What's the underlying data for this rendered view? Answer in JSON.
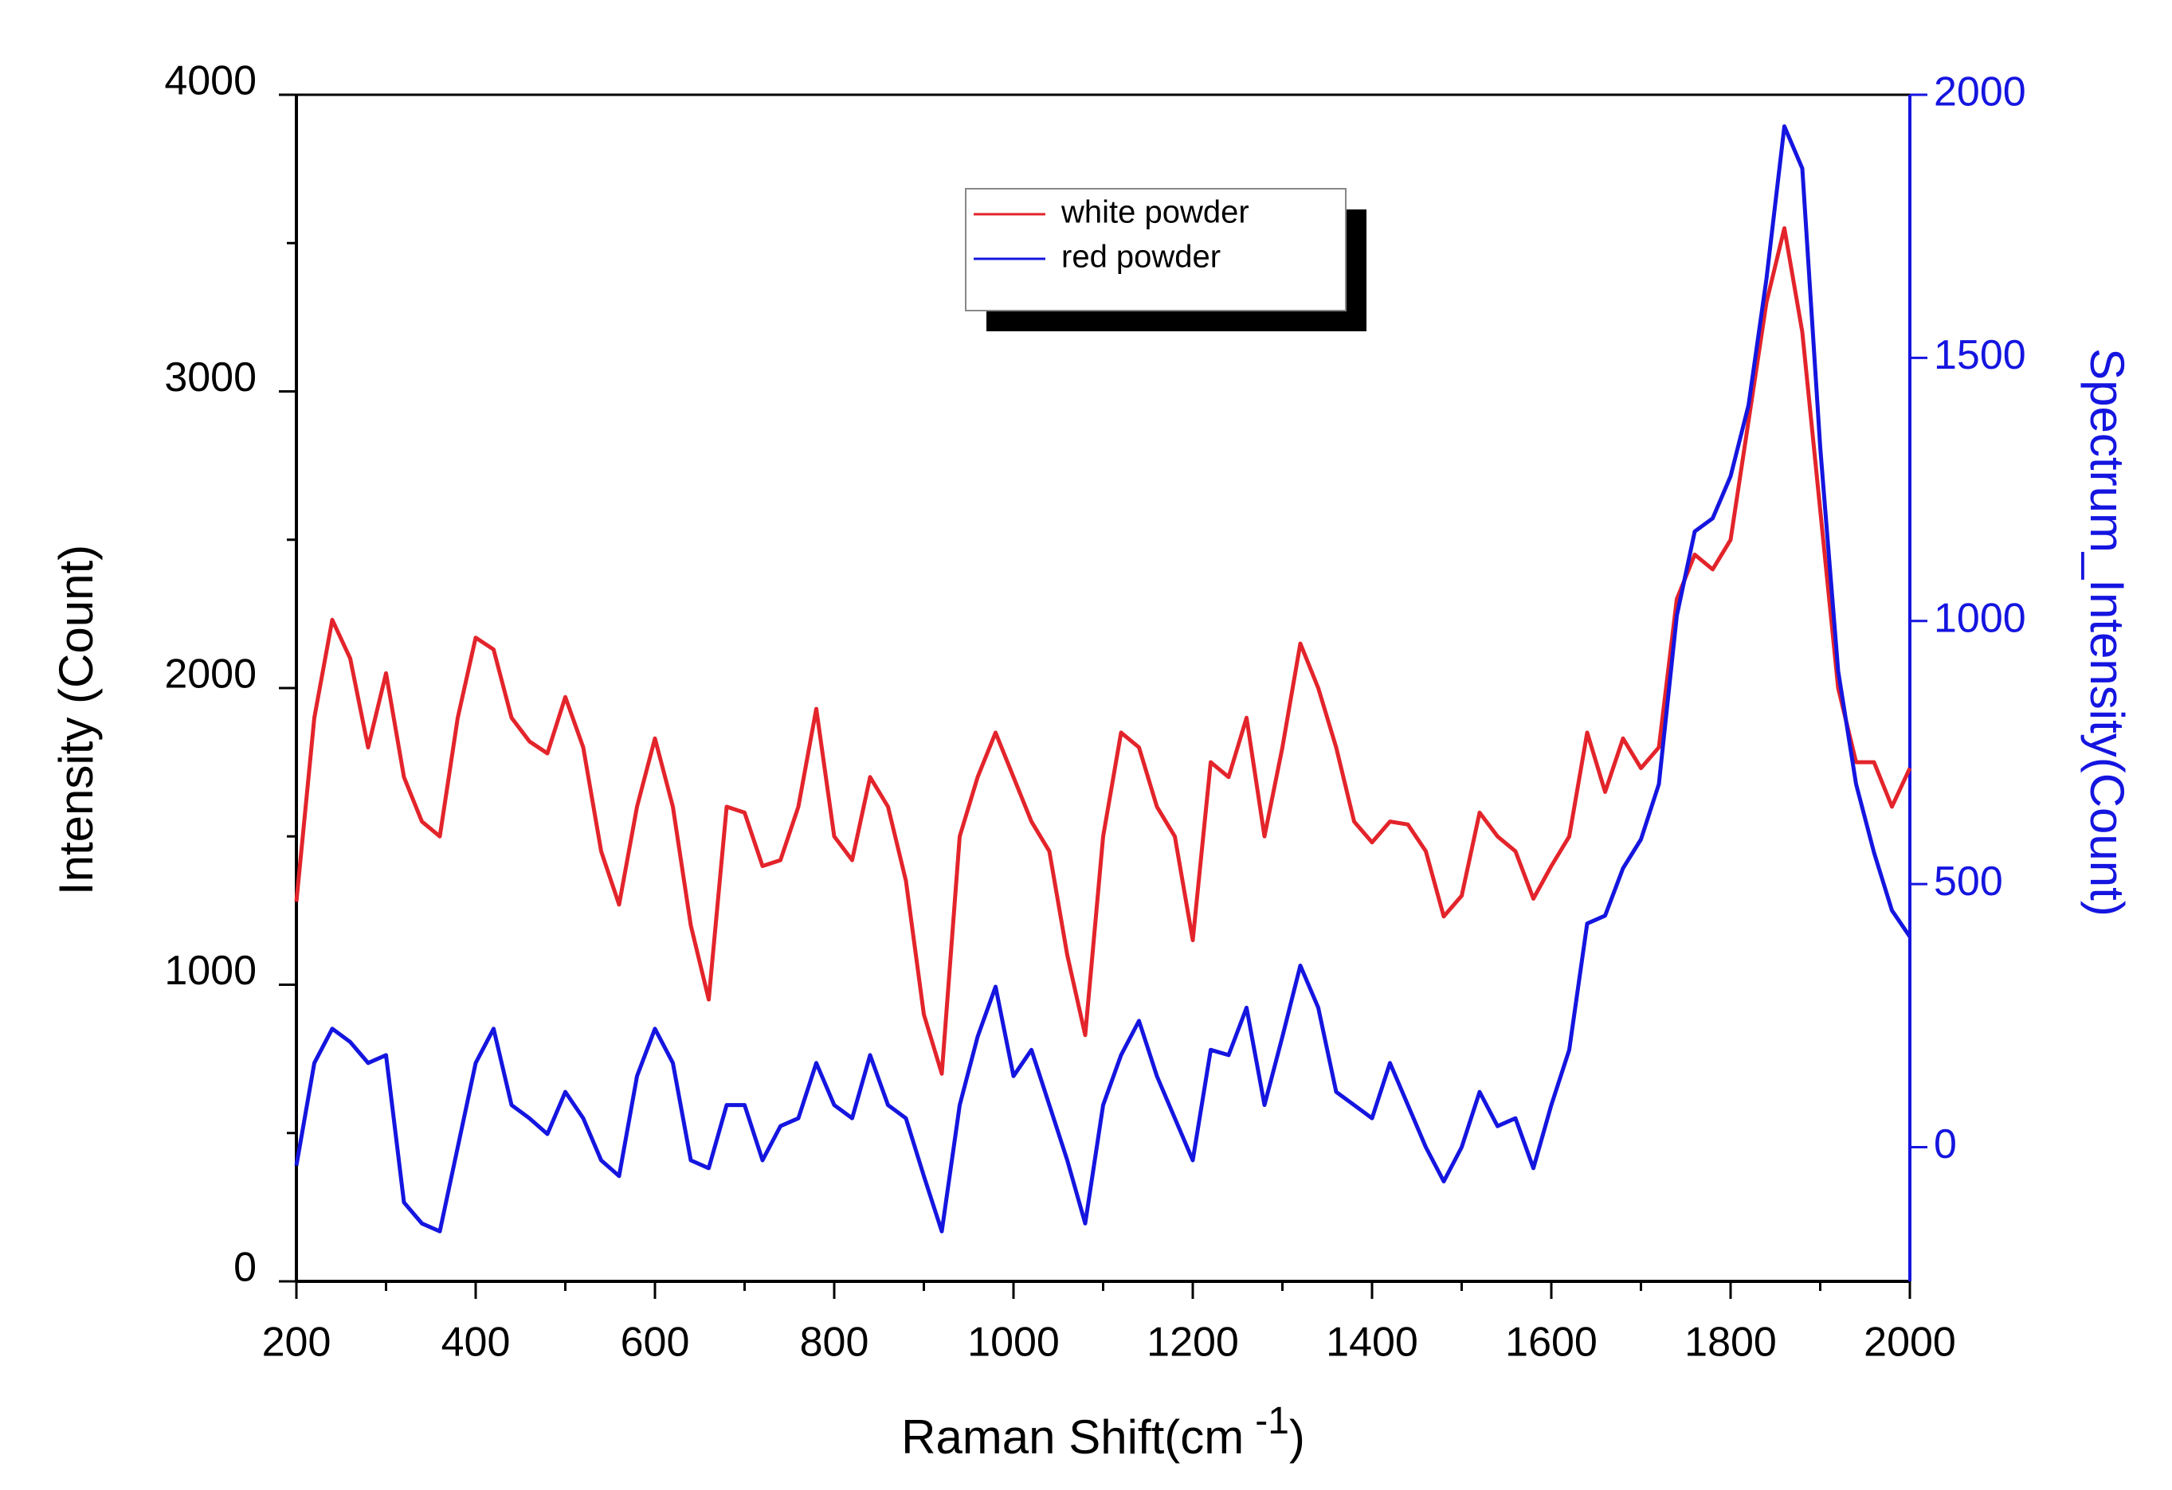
{
  "chart_data": {
    "type": "line",
    "x_label": {
      "text": "Raman Shift(cm",
      "superscript": "-1",
      "suffix": ")"
    },
    "y_label": "Intensity (Count)",
    "y2_label": "Spectrum_Intensity(Count)",
    "x": [
      200,
      220,
      240,
      260,
      280,
      300,
      320,
      340,
      360,
      380,
      400,
      420,
      440,
      460,
      480,
      500,
      520,
      540,
      560,
      580,
      600,
      620,
      640,
      660,
      680,
      700,
      720,
      740,
      760,
      780,
      800,
      820,
      840,
      860,
      880,
      900,
      920,
      940,
      960,
      980,
      1000,
      1020,
      1040,
      1060,
      1080,
      1100,
      1120,
      1140,
      1160,
      1180,
      1200,
      1220,
      1240,
      1260,
      1280,
      1300,
      1320,
      1340,
      1360,
      1380,
      1400,
      1420,
      1440,
      1460,
      1480,
      1500,
      1520,
      1540,
      1560,
      1580,
      1600,
      1620,
      1640,
      1660,
      1680,
      1700,
      1720,
      1740,
      1760,
      1780,
      1800,
      1820,
      1840,
      1860,
      1880,
      1900,
      1920,
      1940,
      1960,
      1980,
      2000
    ],
    "series": [
      {
        "name": "white powder",
        "color": "#e3242b",
        "axis": "y",
        "values": [
          1280,
          1900,
          2230,
          2100,
          1800,
          2050,
          1700,
          1550,
          1500,
          1900,
          2170,
          2130,
          1900,
          1820,
          1780,
          1970,
          1800,
          1450,
          1270,
          1600,
          1830,
          1600,
          1200,
          950,
          1600,
          1580,
          1400,
          1420,
          1600,
          1930,
          1500,
          1420,
          1700,
          1600,
          1350,
          900,
          700,
          1500,
          1700,
          1850,
          1700,
          1550,
          1450,
          1100,
          830,
          1500,
          1850,
          1800,
          1600,
          1500,
          1150,
          1750,
          1700,
          1900,
          1500,
          1800,
          2150,
          2000,
          1800,
          1550,
          1480,
          1550,
          1540,
          1450,
          1230,
          1300,
          1580,
          1500,
          1450,
          1290,
          1400,
          1500,
          1850,
          1650,
          1830,
          1730,
          1800,
          2300,
          2450,
          2400,
          2500,
          2900,
          3300,
          3550,
          3200,
          2600,
          2000,
          1750,
          1750,
          1600,
          1730
        ]
      },
      {
        "name": "red powder",
        "color": "#1515e0",
        "axis": "y2",
        "values": [
          -35,
          160,
          225,
          200,
          160,
          175,
          -105,
          -145,
          -160,
          0,
          160,
          225,
          80,
          55,
          25,
          105,
          55,
          -25,
          -55,
          135,
          225,
          160,
          -25,
          -40,
          80,
          80,
          -25,
          40,
          55,
          160,
          80,
          55,
          175,
          80,
          55,
          -55,
          -160,
          80,
          210,
          305,
          135,
          185,
          80,
          -25,
          -145,
          80,
          175,
          240,
          135,
          55,
          -25,
          185,
          175,
          265,
          80,
          210,
          345,
          265,
          105,
          80,
          55,
          160,
          80,
          0,
          -65,
          0,
          105,
          40,
          55,
          -40,
          80,
          185,
          425,
          440,
          530,
          585,
          690,
          1010,
          1170,
          1195,
          1275,
          1410,
          1650,
          1940,
          1860,
          1330,
          905,
          690,
          560,
          450,
          400
        ]
      }
    ],
    "xlim": [
      200,
      2000
    ],
    "xticks": [
      200,
      400,
      600,
      800,
      1000,
      1200,
      1400,
      1600,
      1800,
      2000
    ],
    "xminor": [
      300,
      500,
      700,
      900,
      1100,
      1300,
      1500,
      1700,
      1900
    ],
    "ylim": [
      0,
      4000
    ],
    "yticks": [
      0,
      1000,
      2000,
      3000,
      4000
    ],
    "yminor": [
      500,
      1500,
      2500,
      3500
    ],
    "y2lim": [
      -255,
      2000
    ],
    "y2ticks": [
      0,
      500,
      1000,
      1500,
      2000
    ],
    "y2_color": "#1515e0",
    "legend_position": "top",
    "grid": false
  }
}
